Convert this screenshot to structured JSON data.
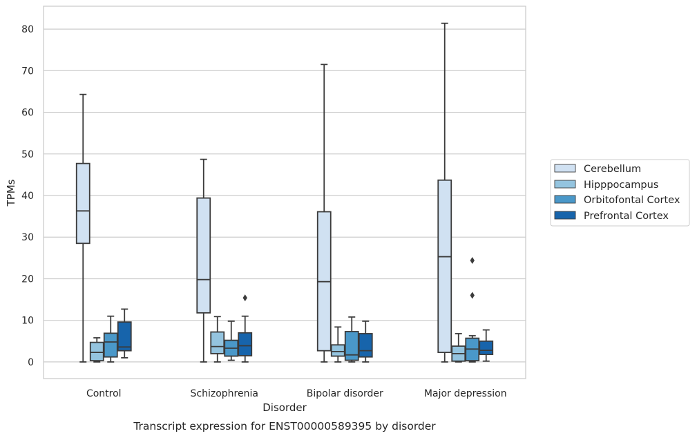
{
  "chart_data": {
    "type": "box",
    "xlabel": "Disorder",
    "ylabel": "TPMs",
    "caption": "Transcript expression for ENST00000589395 by disorder",
    "ylim": [
      -4,
      85.5
    ],
    "yticks": [
      0,
      10,
      20,
      30,
      40,
      50,
      60,
      70,
      80
    ],
    "grid": "horizontal",
    "legend_position": "right",
    "categories": [
      "Control",
      "Schizophrenia",
      "Bipolar disorder",
      "Major depression"
    ],
    "series": [
      {
        "name": "Cerebellum",
        "color": "#d0e1f2",
        "boxes": [
          {
            "min": 0,
            "q1": 28.5,
            "median": 36.3,
            "q3": 47.7,
            "max": 64.3,
            "outliers": []
          },
          {
            "min": 0,
            "q1": 11.8,
            "median": 19.8,
            "q3": 39.4,
            "max": 48.7,
            "outliers": []
          },
          {
            "min": 0,
            "q1": 2.7,
            "median": 19.3,
            "q3": 36.1,
            "max": 71.5,
            "outliers": []
          },
          {
            "min": 0,
            "q1": 2.3,
            "median": 25.3,
            "q3": 43.7,
            "max": 81.4,
            "outliers": []
          }
        ]
      },
      {
        "name": "Hipppocampus",
        "color": "#94c4df",
        "boxes": [
          {
            "min": 0,
            "q1": 0.3,
            "median": 2.3,
            "q3": 4.7,
            "max": 5.8,
            "outliers": []
          },
          {
            "min": 0,
            "q1": 2.0,
            "median": 3.7,
            "q3": 7.2,
            "max": 10.9,
            "outliers": []
          },
          {
            "min": 0,
            "q1": 1.4,
            "median": 2.5,
            "q3": 4.1,
            "max": 8.4,
            "outliers": []
          },
          {
            "min": 0,
            "q1": 0.2,
            "median": 2.0,
            "q3": 3.8,
            "max": 6.8,
            "outliers": []
          }
        ]
      },
      {
        "name": "Orbitofontal Cortex",
        "color": "#4a98c9",
        "boxes": [
          {
            "min": 0,
            "q1": 1.2,
            "median": 4.8,
            "q3": 6.9,
            "max": 11.0,
            "outliers": []
          },
          {
            "min": 0.4,
            "q1": 1.4,
            "median": 3.3,
            "q3": 5.2,
            "max": 9.8,
            "outliers": []
          },
          {
            "min": 0,
            "q1": 0.4,
            "median": 1.7,
            "q3": 7.3,
            "max": 10.8,
            "outliers": []
          },
          {
            "min": 0,
            "q1": 0.3,
            "median": 3.1,
            "q3": 5.7,
            "max": 6.3,
            "outliers": [
              16.0,
              24.4
            ]
          }
        ]
      },
      {
        "name": "Prefrontal Cortex",
        "color": "#1764ab",
        "boxes": [
          {
            "min": 1.0,
            "q1": 2.7,
            "median": 3.6,
            "q3": 9.6,
            "max": 12.7,
            "outliers": []
          },
          {
            "min": 0,
            "q1": 1.5,
            "median": 3.9,
            "q3": 7.0,
            "max": 11.0,
            "outliers": [
              15.4
            ]
          },
          {
            "min": 0,
            "q1": 1.2,
            "median": 2.7,
            "q3": 6.8,
            "max": 9.8,
            "outliers": []
          },
          {
            "min": 0.2,
            "q1": 1.8,
            "median": 2.8,
            "q3": 5.0,
            "max": 7.7,
            "outliers": []
          }
        ]
      }
    ]
  }
}
